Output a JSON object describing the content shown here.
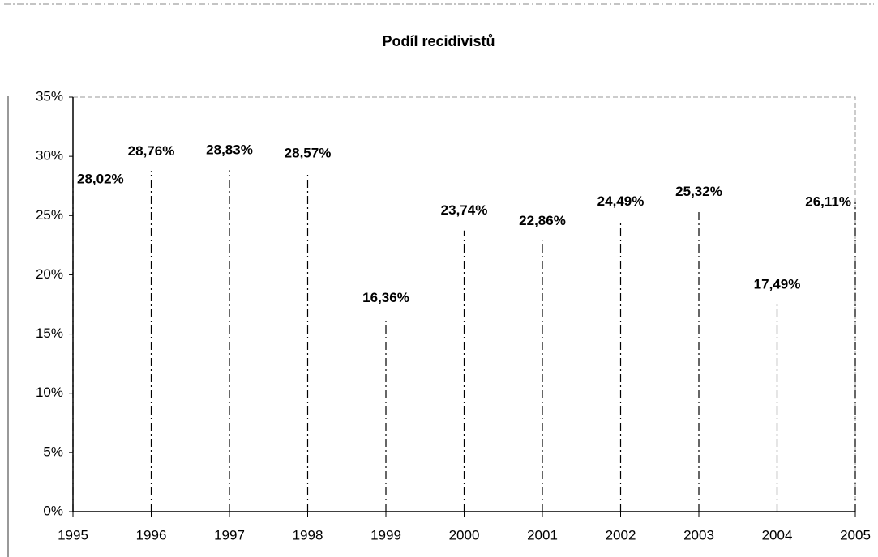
{
  "chart_data": {
    "type": "stem",
    "title": "Podíl recidivistů",
    "x": [
      1995,
      1996,
      1997,
      1998,
      1999,
      2000,
      2001,
      2002,
      2003,
      2004,
      2005
    ],
    "values": [
      28.02,
      28.76,
      28.83,
      28.57,
      16.36,
      23.74,
      22.86,
      24.49,
      25.32,
      17.49,
      26.11
    ],
    "value_labels": [
      "28,02%",
      "28,76%",
      "28,83%",
      "28,57%",
      "16,36%",
      "23,74%",
      "22,86%",
      "24,49%",
      "25,32%",
      "17,49%",
      "26,11%"
    ],
    "color": "#000000",
    "xlim": [
      1995,
      2005
    ],
    "xticks": [
      1995,
      1996,
      1997,
      1998,
      1999,
      2000,
      2001,
      2002,
      2003,
      2004,
      2005
    ],
    "ylim": [
      0,
      35
    ],
    "yticks": [
      {
        "value": 0,
        "label": "0%"
      },
      {
        "value": 5,
        "label": "5%"
      },
      {
        "value": 10,
        "label": "10%"
      },
      {
        "value": 15,
        "label": "15%"
      },
      {
        "value": 20,
        "label": "20%"
      },
      {
        "value": 25,
        "label": "25%"
      },
      {
        "value": 30,
        "label": "30%"
      },
      {
        "value": 35,
        "label": "35%"
      }
    ]
  }
}
